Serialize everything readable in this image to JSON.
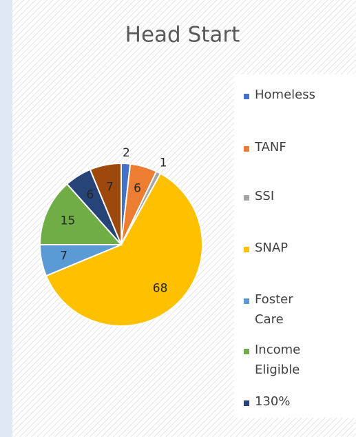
{
  "chart_data": {
    "type": "pie",
    "title": "Head Start",
    "categories": [
      "Homeless",
      "TANF",
      "SSI",
      "SNAP",
      "Foster Care",
      "Income Eligible",
      "130%",
      null
    ],
    "values": [
      2,
      6,
      1,
      68,
      7,
      15,
      6,
      7
    ],
    "colors": [
      "#4472c4",
      "#ed7d31",
      "#a5a5a5",
      "#ffc000",
      "#5b9bd5",
      "#70ad47",
      "#264478",
      "#9e480e"
    ],
    "legend": "right"
  }
}
